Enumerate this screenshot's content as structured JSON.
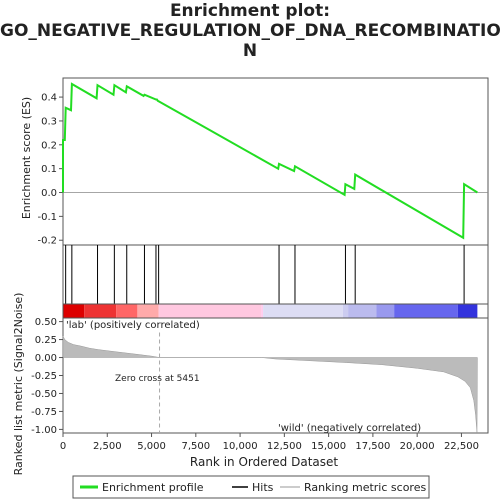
{
  "title_lines": [
    "Enrichment plot:",
    "GO_NEGATIVE_REGULATION_OF_DNA_RECOMBINATIO",
    "N"
  ],
  "colors": {
    "es_line": "#22dd22",
    "hits": "#000000",
    "metric_fill": "#bbbbbb",
    "zero_cross_line": "#aaaaaa",
    "pos_label": "#cc0000",
    "neg_label": "#0000cc",
    "axis": "#555555"
  },
  "chart_data": [
    {
      "type": "line",
      "name": "enrichment-profile",
      "ylabel": "Enrichment score (ES)",
      "xlim": [
        0,
        24000
      ],
      "ylim": [
        -0.22,
        0.48
      ],
      "yticks": [
        -0.2,
        -0.1,
        0.0,
        0.1,
        0.2,
        0.3,
        0.4
      ],
      "grid": false,
      "points": [
        [
          0,
          0.0
        ],
        [
          0,
          0.22
        ],
        [
          100,
          0.22
        ],
        [
          150,
          0.355
        ],
        [
          450,
          0.345
        ],
        [
          500,
          0.455
        ],
        [
          1900,
          0.395
        ],
        [
          1950,
          0.45
        ],
        [
          2850,
          0.41
        ],
        [
          2900,
          0.45
        ],
        [
          3550,
          0.42
        ],
        [
          3600,
          0.445
        ],
        [
          4550,
          0.405
        ],
        [
          4600,
          0.41
        ],
        [
          5250,
          0.39
        ],
        [
          5300,
          0.39
        ],
        [
          5350,
          0.385
        ],
        [
          12150,
          0.1
        ],
        [
          12200,
          0.12
        ],
        [
          13050,
          0.09
        ],
        [
          13100,
          0.11
        ],
        [
          15900,
          -0.01
        ],
        [
          15950,
          0.035
        ],
        [
          16450,
          0.015
        ],
        [
          16500,
          0.075
        ],
        [
          22600,
          -0.19
        ],
        [
          22650,
          0.035
        ],
        [
          23400,
          0.0
        ]
      ]
    },
    {
      "type": "scatter",
      "name": "hits",
      "x": [
        150,
        500,
        1950,
        2900,
        3600,
        4600,
        5250,
        5400,
        12200,
        13100,
        15950,
        16500,
        22650
      ]
    },
    {
      "type": "area",
      "name": "ranking-metric-scores",
      "xlabel": "Rank in Ordered Dataset",
      "ylabel": "Ranked list metric (Signal2Noise)",
      "xlim": [
        0,
        24000
      ],
      "ylim": [
        -1.05,
        0.55
      ],
      "xticks": [
        0,
        2500,
        5000,
        7500,
        10000,
        12500,
        15000,
        17500,
        20000,
        22500
      ],
      "yticks": [
        -1.0,
        -0.75,
        -0.5,
        -0.25,
        0.0,
        0.25,
        0.5
      ],
      "points": [
        [
          0,
          0.3
        ],
        [
          100,
          0.25
        ],
        [
          300,
          0.21
        ],
        [
          600,
          0.18
        ],
        [
          1000,
          0.16
        ],
        [
          1500,
          0.13
        ],
        [
          2000,
          0.11
        ],
        [
          3000,
          0.08
        ],
        [
          4000,
          0.05
        ],
        [
          5000,
          0.02
        ],
        [
          5451,
          0.0
        ],
        [
          11200,
          0.0
        ],
        [
          12000,
          -0.02
        ],
        [
          14000,
          -0.045
        ],
        [
          16000,
          -0.07
        ],
        [
          18000,
          -0.1
        ],
        [
          20000,
          -0.15
        ],
        [
          21500,
          -0.2
        ],
        [
          22300,
          -0.27
        ],
        [
          22700,
          -0.33
        ],
        [
          23000,
          -0.42
        ],
        [
          23200,
          -0.6
        ],
        [
          23300,
          -0.8
        ],
        [
          23380,
          -1.05
        ],
        [
          23400,
          0.0
        ]
      ],
      "zero_cross_label": "Zero cross at 5451",
      "zero_cross_x": 5451,
      "pos_label": "'lab' (positively correlated)",
      "neg_label": "'wild' (negatively correlated)"
    }
  ],
  "legend": {
    "placement": "bottom",
    "items": [
      {
        "label": "Enrichment profile",
        "color": "#22dd22"
      },
      {
        "label": "Hits",
        "color": "#000000"
      },
      {
        "label": "Ranking metric scores",
        "color": "#bbbbbb"
      }
    ]
  }
}
